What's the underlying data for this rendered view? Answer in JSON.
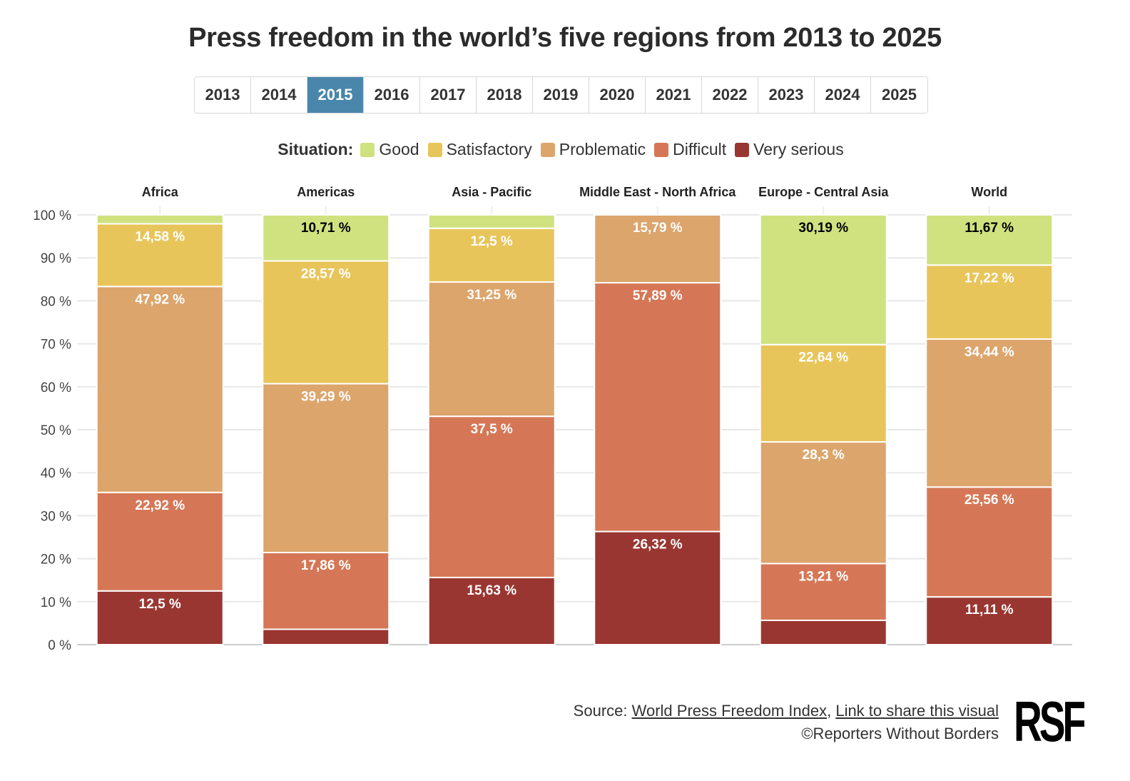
{
  "title": "Press freedom in the world’s five regions from 2013 to 2025",
  "years": [
    "2013",
    "2014",
    "2015",
    "2016",
    "2017",
    "2018",
    "2019",
    "2020",
    "2021",
    "2022",
    "2023",
    "2024",
    "2025"
  ],
  "selected_year": "2015",
  "legend": {
    "title": "Situation:",
    "items": [
      {
        "label": "Good",
        "color": "#cfe27f"
      },
      {
        "label": "Satisfactory",
        "color": "#e8c55a"
      },
      {
        "label": "Problematic",
        "color": "#dca56c"
      },
      {
        "label": "Difficult",
        "color": "#d57756"
      },
      {
        "label": "Very serious",
        "color": "#9a3631"
      }
    ]
  },
  "chart_data": {
    "type": "bar",
    "stacked": true,
    "categories": [
      "Africa",
      "Americas",
      "Asia - Pacific",
      "Middle East - North Africa",
      "Europe - Central Asia",
      "World"
    ],
    "series": [
      {
        "name": "Very serious",
        "color": "#9a3631",
        "values": [
          12.5,
          3.57,
          15.63,
          26.32,
          5.66,
          11.11
        ]
      },
      {
        "name": "Difficult",
        "color": "#d57756",
        "values": [
          22.92,
          17.86,
          37.5,
          57.89,
          13.21,
          25.56
        ]
      },
      {
        "name": "Problematic",
        "color": "#dca56c",
        "values": [
          47.92,
          39.29,
          31.25,
          15.79,
          28.3,
          34.44
        ]
      },
      {
        "name": "Satisfactory",
        "color": "#e8c55a",
        "values": [
          14.58,
          28.57,
          12.5,
          0,
          22.64,
          17.22
        ]
      },
      {
        "name": "Good",
        "color": "#cfe27f",
        "values": [
          2.08,
          10.71,
          3.13,
          0,
          30.19,
          11.67
        ]
      }
    ],
    "labels": [
      [
        "12,5 %",
        "",
        "15,63 %",
        "26,32 %",
        "",
        "11,11 %"
      ],
      [
        "22,92 %",
        "17,86 %",
        "37,5 %",
        "57,89 %",
        "13,21 %",
        "25,56 %"
      ],
      [
        "47,92 %",
        "39,29 %",
        "31,25 %",
        "15,79 %",
        "28,3 %",
        "34,44 %"
      ],
      [
        "14,58 %",
        "28,57 %",
        "12,5 %",
        "",
        "22,64 %",
        "17,22 %"
      ],
      [
        "",
        "10,71 %",
        "",
        "",
        "30,19 %",
        "11,67 %"
      ]
    ],
    "yticks": [
      "0 %",
      "10 %",
      "20 %",
      "30 %",
      "40 %",
      "50 %",
      "60 %",
      "70 %",
      "80 %",
      "90 %",
      "100 %"
    ],
    "ylim": [
      0,
      100
    ],
    "legend_position": "top",
    "grid": true
  },
  "source": {
    "prefix": "Source: ",
    "link1": "World Press Freedom Index",
    "separator": ", ",
    "link2": "Link to share this visual",
    "copyright": "©Reporters Without Borders"
  },
  "logo": "RSF"
}
